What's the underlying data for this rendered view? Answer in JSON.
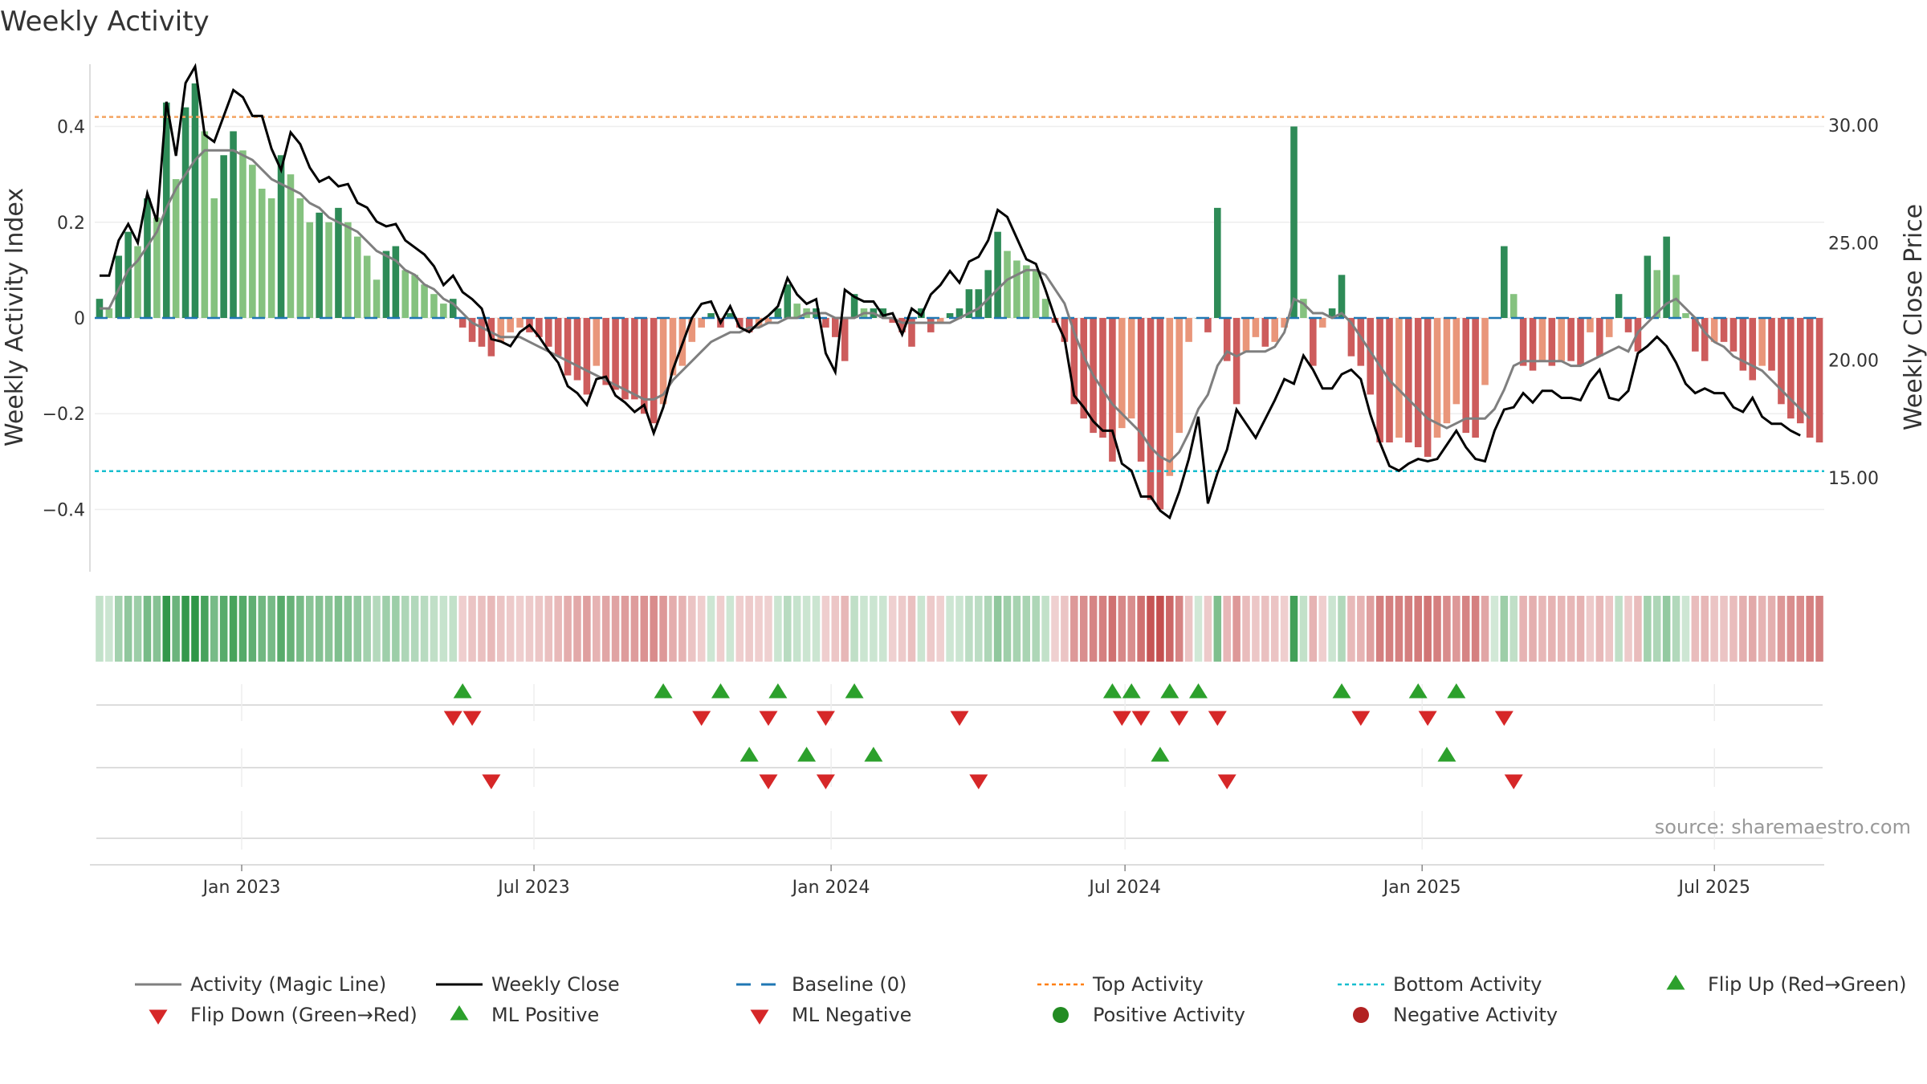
{
  "chart_data": {
    "type": "bar",
    "title": "Weekly Activity",
    "ylabel": "Weekly Activity Index",
    "y2label": "Weekly Close Price",
    "ylim": [
      -0.53,
      0.53
    ],
    "y2lim": [
      11.0,
      32.6
    ],
    "yticks": [
      0.4,
      0.2,
      0,
      -0.2,
      -0.4
    ],
    "ytick_labels": [
      "0.4",
      "0.2",
      "0",
      "−0.2",
      "−0.4"
    ],
    "y2ticks": [
      30.0,
      25.0,
      20.0,
      15.0
    ],
    "y2tick_labels": [
      "30.00",
      "25.00",
      "20.00",
      "15.00"
    ],
    "x_start": "2022-10-02",
    "x_end": "2025-09-07",
    "xticks": [
      {
        "date": "2023-01-01",
        "label": "Jan 2023"
      },
      {
        "date": "2023-07-01",
        "label": "Jul 2023"
      },
      {
        "date": "2024-01-01",
        "label": "Jan 2024"
      },
      {
        "date": "2024-07-01",
        "label": "Jul 2024"
      },
      {
        "date": "2025-01-01",
        "label": "Jan 2025"
      },
      {
        "date": "2025-07-01",
        "label": "Jul 2025"
      }
    ],
    "top_activity": 0.42,
    "bottom_activity": -0.32,
    "baseline": 0,
    "activity": [
      0.04,
      0.02,
      0.13,
      0.18,
      0.15,
      0.25,
      0.21,
      0.45,
      0.29,
      0.44,
      0.49,
      0.39,
      0.25,
      0.34,
      0.39,
      0.35,
      0.32,
      0.27,
      0.25,
      0.34,
      0.3,
      0.25,
      0.2,
      0.22,
      0.2,
      0.23,
      0.2,
      0.17,
      0.13,
      0.08,
      0.14,
      0.15,
      0.1,
      0.09,
      0.07,
      0.05,
      0.03,
      0.04,
      -0.02,
      -0.05,
      -0.06,
      -0.08,
      -0.05,
      -0.03,
      -0.02,
      -0.03,
      -0.04,
      -0.06,
      -0.08,
      -0.12,
      -0.13,
      -0.16,
      -0.1,
      -0.14,
      -0.15,
      -0.17,
      -0.17,
      -0.2,
      -0.22,
      -0.18,
      -0.12,
      -0.1,
      -0.05,
      -0.02,
      0.01,
      -0.02,
      0.01,
      -0.02,
      -0.03,
      -0.02,
      -0.01,
      0.02,
      0.07,
      0.03,
      0.02,
      0.02,
      -0.02,
      -0.04,
      -0.09,
      0.05,
      0.02,
      0.02,
      0.02,
      -0.01,
      -0.03,
      -0.06,
      0.02,
      -0.03,
      -0.01,
      0.01,
      0.02,
      0.06,
      0.06,
      0.1,
      0.18,
      0.14,
      0.12,
      0.11,
      0.1,
      0.04,
      -0.01,
      -0.05,
      -0.18,
      -0.21,
      -0.24,
      -0.25,
      -0.3,
      -0.23,
      -0.21,
      -0.3,
      -0.38,
      -0.4,
      -0.33,
      -0.24,
      -0.05,
      0.0,
      -0.03,
      0.23,
      -0.09,
      -0.18,
      -0.07,
      -0.04,
      -0.06,
      -0.05,
      -0.02,
      0.4,
      0.04,
      -0.1,
      -0.02,
      0.02,
      0.09,
      -0.08,
      -0.1,
      -0.16,
      -0.26,
      -0.26,
      -0.25,
      -0.26,
      -0.27,
      -0.29,
      -0.25,
      -0.22,
      -0.18,
      -0.24,
      -0.25,
      -0.14,
      0.0,
      0.15,
      0.05,
      -0.1,
      -0.11,
      -0.09,
      -0.1,
      -0.09,
      -0.09,
      -0.1,
      -0.03,
      -0.08,
      -0.04,
      0.05,
      -0.03,
      -0.07,
      0.13,
      0.1,
      0.17,
      0.09,
      0.01,
      -0.07,
      -0.09,
      -0.05,
      -0.05,
      -0.07,
      -0.11,
      -0.13,
      -0.1,
      -0.11,
      -0.18,
      -0.21,
      -0.22,
      -0.25,
      -0.26
    ],
    "magic_line": [
      0.02,
      0.02,
      0.06,
      0.1,
      0.12,
      0.15,
      0.18,
      0.23,
      0.27,
      0.3,
      0.33,
      0.35,
      0.35,
      0.35,
      0.35,
      0.34,
      0.33,
      0.31,
      0.29,
      0.28,
      0.27,
      0.26,
      0.24,
      0.23,
      0.21,
      0.2,
      0.19,
      0.18,
      0.16,
      0.14,
      0.13,
      0.12,
      0.1,
      0.09,
      0.07,
      0.06,
      0.04,
      0.03,
      0.01,
      -0.01,
      -0.02,
      -0.03,
      -0.04,
      -0.04,
      -0.04,
      -0.05,
      -0.06,
      -0.07,
      -0.08,
      -0.09,
      -0.1,
      -0.11,
      -0.12,
      -0.13,
      -0.14,
      -0.15,
      -0.16,
      -0.17,
      -0.17,
      -0.16,
      -0.13,
      -0.11,
      -0.09,
      -0.07,
      -0.05,
      -0.04,
      -0.03,
      -0.03,
      -0.02,
      -0.02,
      -0.01,
      -0.01,
      0.0,
      0.0,
      0.01,
      0.01,
      0.01,
      0.0,
      0.0,
      0.0,
      0.01,
      0.01,
      0.0,
      0.0,
      -0.01,
      -0.01,
      -0.01,
      -0.01,
      -0.01,
      -0.01,
      0.0,
      0.01,
      0.02,
      0.04,
      0.06,
      0.08,
      0.09,
      0.1,
      0.1,
      0.09,
      0.06,
      0.03,
      -0.03,
      -0.08,
      -0.12,
      -0.15,
      -0.18,
      -0.2,
      -0.22,
      -0.24,
      -0.27,
      -0.29,
      -0.3,
      -0.28,
      -0.24,
      -0.19,
      -0.16,
      -0.1,
      -0.07,
      -0.08,
      -0.07,
      -0.07,
      -0.07,
      -0.06,
      -0.03,
      0.04,
      0.03,
      0.01,
      0.01,
      0.0,
      0.01,
      -0.01,
      -0.04,
      -0.07,
      -0.1,
      -0.13,
      -0.15,
      -0.17,
      -0.19,
      -0.21,
      -0.22,
      -0.23,
      -0.22,
      -0.21,
      -0.21,
      -0.21,
      -0.19,
      -0.15,
      -0.1,
      -0.09,
      -0.09,
      -0.09,
      -0.09,
      -0.09,
      -0.1,
      -0.1,
      -0.09,
      -0.08,
      -0.07,
      -0.06,
      -0.07,
      -0.03,
      -0.01,
      0.01,
      0.03,
      0.04,
      0.02,
      0.0,
      -0.03,
      -0.05,
      -0.06,
      -0.08,
      -0.09,
      -0.1,
      -0.11,
      -0.13,
      -0.15,
      -0.17,
      -0.19,
      -0.21
    ],
    "weekly_close": [
      23.6,
      23.6,
      25.1,
      25.8,
      25.0,
      27.1,
      25.9,
      31.0,
      28.7,
      31.8,
      32.5,
      29.6,
      29.3,
      30.4,
      31.5,
      31.2,
      30.4,
      30.4,
      29.0,
      28.1,
      29.7,
      29.2,
      28.2,
      27.6,
      27.8,
      27.4,
      27.5,
      26.7,
      26.5,
      25.9,
      25.7,
      25.8,
      25.1,
      24.8,
      24.5,
      24.0,
      23.2,
      23.6,
      22.9,
      22.6,
      22.2,
      20.9,
      20.8,
      20.6,
      21.2,
      21.5,
      21.0,
      20.4,
      19.9,
      18.9,
      18.6,
      18.1,
      19.2,
      19.3,
      18.5,
      18.2,
      17.8,
      18.1,
      16.9,
      18.0,
      19.6,
      20.7,
      21.8,
      22.4,
      22.5,
      21.6,
      22.3,
      21.4,
      21.2,
      21.6,
      21.9,
      22.3,
      23.5,
      22.8,
      22.4,
      22.6,
      20.3,
      19.5,
      23.0,
      22.7,
      22.5,
      22.5,
      21.9,
      22.0,
      21.1,
      22.2,
      21.9,
      22.8,
      23.2,
      23.8,
      23.3,
      24.2,
      24.4,
      25.1,
      26.4,
      26.1,
      25.2,
      24.3,
      24.1,
      23.0,
      21.8,
      20.9,
      18.5,
      18.0,
      17.4,
      17.0,
      17.0,
      15.6,
      15.3,
      14.2,
      14.2,
      13.6,
      13.3,
      14.4,
      15.8,
      17.6,
      13.9,
      15.2,
      16.2,
      17.9,
      17.3,
      16.7,
      17.5,
      18.3,
      19.2,
      19.0,
      20.2,
      19.6,
      18.8,
      18.8,
      19.4,
      19.6,
      19.2,
      17.7,
      16.5,
      15.5,
      15.3,
      15.6,
      15.8,
      15.7,
      15.8,
      16.4,
      17.0,
      16.3,
      15.8,
      15.7,
      17.0,
      17.9,
      18.0,
      18.6,
      18.2,
      18.7,
      18.7,
      18.4,
      18.4,
      18.3,
      19.1,
      19.6,
      18.4,
      18.3,
      18.7,
      20.3,
      20.6,
      21.0,
      20.6,
      19.9,
      19.0,
      18.6,
      18.8,
      18.6,
      18.6,
      18.0,
      17.8,
      18.4,
      17.6,
      17.3,
      17.3,
      17.0,
      16.8
    ],
    "flip_up_weeks": [
      38,
      59,
      65,
      71,
      79,
      106,
      108,
      112,
      115,
      130,
      138,
      142
    ],
    "flip_down_weeks": [
      37,
      39,
      63,
      70,
      76,
      90,
      107,
      109,
      113,
      117,
      132,
      139,
      147
    ],
    "ml_positive_weeks": [
      68,
      74,
      81,
      111,
      141
    ],
    "ml_negative_weeks": [
      41,
      70,
      76,
      92,
      118,
      148
    ],
    "legend": [
      {
        "label": "Activity (Magic Line)",
        "marker": "line",
        "color": "#7f7f7f"
      },
      {
        "label": "Weekly Close",
        "marker": "line",
        "color": "#000000"
      },
      {
        "label": "Baseline (0)",
        "marker": "dash",
        "color": "#1f77b4"
      },
      {
        "label": "Top Activity",
        "marker": "dot",
        "color": "#ff7f0e"
      },
      {
        "label": "Bottom Activity",
        "marker": "dot",
        "color": "#17becf"
      },
      {
        "label": "Flip Up (Red→Green)",
        "marker": "triangle-up",
        "color": "#2ca02c"
      },
      {
        "label": "Flip Down (Green→Red)",
        "marker": "triangle-down",
        "color": "#d62728"
      },
      {
        "label": "ML Positive",
        "marker": "triangle-up",
        "color": "#2ca02c"
      },
      {
        "label": "ML Negative",
        "marker": "triangle-down",
        "color": "#d62728"
      },
      {
        "label": "Positive Activity",
        "marker": "circle",
        "color": "#228b22"
      },
      {
        "label": "Negative Activity",
        "marker": "circle",
        "color": "#b22222"
      }
    ],
    "source": "source: sharemaestro.com"
  },
  "colors": {
    "strong_green": "#2e8b57",
    "light_green": "#85c27f",
    "strong_red": "#cd5c5c",
    "light_red": "#e9967a",
    "magic_line": "#7f7f7f",
    "close_line": "#000000",
    "baseline": "#1f77b4",
    "top_line": "#f4a460",
    "bottom_line": "#17becf",
    "flip_up": "#2ca02c",
    "flip_down": "#d62728"
  }
}
